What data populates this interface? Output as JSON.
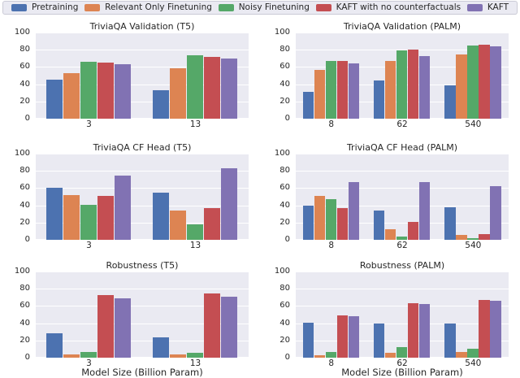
{
  "legend": {
    "items": [
      {
        "label": "Pretraining",
        "color": "#4C72B0"
      },
      {
        "label": "Relevant Only Finetuning",
        "color": "#DD8452"
      },
      {
        "label": "Noisy Finetuning",
        "color": "#55A868"
      },
      {
        "label": "KAFT with no counterfactuals",
        "color": "#C44E52"
      },
      {
        "label": "KAFT",
        "color": "#8172B3"
      }
    ]
  },
  "style": {
    "plot_background": "#EAEAF2",
    "gridline_color": "#ffffff",
    "text_color": "#262626"
  },
  "chart_data": [
    {
      "type": "bar",
      "title": "TriviaQA Validation (T5)",
      "categories": [
        "3",
        "13"
      ],
      "series": [
        {
          "name": "Pretraining",
          "values": [
            45,
            33
          ]
        },
        {
          "name": "Relevant Only Finetuning",
          "values": [
            53,
            59
          ]
        },
        {
          "name": "Noisy Finetuning",
          "values": [
            66,
            74
          ]
        },
        {
          "name": "KAFT with no counterfactuals",
          "values": [
            65,
            72
          ]
        },
        {
          "name": "KAFT",
          "values": [
            63,
            70
          ]
        }
      ],
      "xlabel": "",
      "ylabel": "",
      "ylim": [
        0,
        100
      ],
      "yticks": [
        0,
        20,
        40,
        60,
        80,
        100
      ],
      "grid": true
    },
    {
      "type": "bar",
      "title": "TriviaQA Validation (PALM)",
      "categories": [
        "8",
        "62",
        "540"
      ],
      "series": [
        {
          "name": "Pretraining",
          "values": [
            31,
            44,
            39
          ]
        },
        {
          "name": "Relevant Only Finetuning",
          "values": [
            57,
            67,
            75
          ]
        },
        {
          "name": "Noisy Finetuning",
          "values": [
            67,
            79,
            85
          ]
        },
        {
          "name": "KAFT with no counterfactuals",
          "values": [
            67,
            80,
            86
          ]
        },
        {
          "name": "KAFT",
          "values": [
            64,
            73,
            84
          ]
        }
      ],
      "xlabel": "",
      "ylabel": "",
      "ylim": [
        0,
        100
      ],
      "yticks": [
        0,
        20,
        40,
        60,
        80,
        100
      ],
      "grid": true
    },
    {
      "type": "bar",
      "title": "TriviaQA CF Head (T5)",
      "categories": [
        "3",
        "13"
      ],
      "series": [
        {
          "name": "Pretraining",
          "values": [
            60,
            55
          ]
        },
        {
          "name": "Relevant Only Finetuning",
          "values": [
            52,
            34
          ]
        },
        {
          "name": "Noisy Finetuning",
          "values": [
            41,
            18
          ]
        },
        {
          "name": "KAFT with no counterfactuals",
          "values": [
            51,
            37
          ]
        },
        {
          "name": "KAFT",
          "values": [
            75,
            83
          ]
        }
      ],
      "xlabel": "",
      "ylabel": "",
      "ylim": [
        0,
        100
      ],
      "yticks": [
        0,
        20,
        40,
        60,
        80,
        100
      ],
      "grid": true
    },
    {
      "type": "bar",
      "title": "TriviaQA CF Head (PALM)",
      "categories": [
        "8",
        "62",
        "540"
      ],
      "series": [
        {
          "name": "Pretraining",
          "values": [
            40,
            34,
            38
          ]
        },
        {
          "name": "Relevant Only Finetuning",
          "values": [
            51,
            12,
            6
          ]
        },
        {
          "name": "Noisy Finetuning",
          "values": [
            47,
            4,
            2
          ]
        },
        {
          "name": "KAFT with no counterfactuals",
          "values": [
            37,
            21,
            7
          ]
        },
        {
          "name": "KAFT",
          "values": [
            67,
            67,
            62
          ]
        }
      ],
      "xlabel": "",
      "ylabel": "",
      "ylim": [
        0,
        100
      ],
      "yticks": [
        0,
        20,
        40,
        60,
        80,
        100
      ],
      "grid": true
    },
    {
      "type": "bar",
      "title": "Robustness (T5)",
      "categories": [
        "3",
        "13"
      ],
      "series": [
        {
          "name": "Pretraining",
          "values": [
            28,
            24
          ]
        },
        {
          "name": "Relevant Only Finetuning",
          "values": [
            4,
            4
          ]
        },
        {
          "name": "Noisy Finetuning",
          "values": [
            7,
            6
          ]
        },
        {
          "name": "KAFT with no counterfactuals",
          "values": [
            73,
            75
          ]
        },
        {
          "name": "KAFT",
          "values": [
            69,
            71
          ]
        }
      ],
      "xlabel": "Model Size (Billion Param)",
      "ylabel": "",
      "ylim": [
        0,
        100
      ],
      "yticks": [
        0,
        20,
        40,
        60,
        80,
        100
      ],
      "grid": true
    },
    {
      "type": "bar",
      "title": "Robustness (PALM)",
      "categories": [
        "8",
        "62",
        "540"
      ],
      "series": [
        {
          "name": "Pretraining",
          "values": [
            41,
            40,
            40
          ]
        },
        {
          "name": "Relevant Only Finetuning",
          "values": [
            3,
            6,
            7
          ]
        },
        {
          "name": "Noisy Finetuning",
          "values": [
            7,
            12,
            10
          ]
        },
        {
          "name": "KAFT with no counterfactuals",
          "values": [
            49,
            63,
            67
          ]
        },
        {
          "name": "KAFT",
          "values": [
            48,
            62,
            66
          ]
        }
      ],
      "xlabel": "Model Size (Billion Param)",
      "ylabel": "",
      "ylim": [
        0,
        100
      ],
      "yticks": [
        0,
        20,
        40,
        60,
        80,
        100
      ],
      "grid": true
    }
  ]
}
